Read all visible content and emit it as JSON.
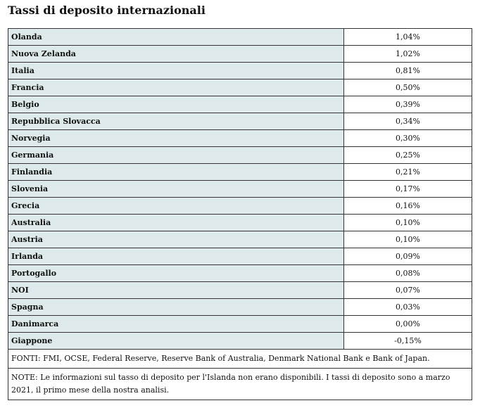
{
  "header": {
    "title": "Tassi di deposito internazionali"
  },
  "table": {
    "rows": [
      [
        "Olanda",
        "1,04%"
      ],
      [
        "Nuova Zelanda",
        "1,02%"
      ],
      [
        "Italia",
        "0,81%"
      ],
      [
        "Francia",
        "0,50%"
      ],
      [
        "Belgio",
        "0,39%"
      ],
      [
        "Repubblica Slovacca",
        "0,34%"
      ],
      [
        "Norvegia",
        "0,30%"
      ],
      [
        "Germania",
        "0,25%"
      ],
      [
        "Finlandia",
        "0,21%"
      ],
      [
        "Slovenia",
        "0,17%"
      ],
      [
        "Grecia",
        "0,16%"
      ],
      [
        "Australia",
        "0,10%"
      ],
      [
        "Austria",
        "0,10%"
      ],
      [
        "Irlanda",
        "0,09%"
      ],
      [
        "Portogallo",
        "0,08%"
      ],
      [
        "NOI",
        "0,07%"
      ],
      [
        "Spagna",
        "0,03%"
      ],
      [
        "Danimarca",
        "0,00%"
      ],
      [
        "Giappone",
        "-0,15%"
      ]
    ],
    "sources": "FONTI: FMI, OCSE, Federal Reserve, Reserve Bank of Australia, Denmark National Bank e Bank of Japan.",
    "note": "NOTE: Le informazioni sul tasso di deposito per l'Islanda non erano disponibili. I tassi di deposito sono a marzo 2021, il primo mese della nostra analisi."
  }
}
